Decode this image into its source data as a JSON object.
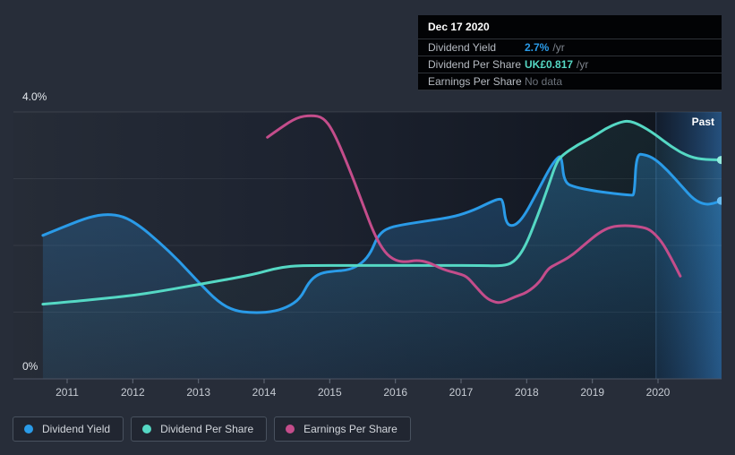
{
  "tooltip": {
    "title": "Dec 17 2020",
    "rows": [
      {
        "label": "Dividend Yield",
        "value": "2.7%",
        "unit": "/yr"
      },
      {
        "label": "Dividend Per Share",
        "value": "UK£0.817",
        "unit": "/yr"
      },
      {
        "label": "Earnings Per Share",
        "value": "No data",
        "unit": ""
      }
    ]
  },
  "chart_data": {
    "type": "line",
    "title": "",
    "x_ticks": [
      2011,
      2012,
      2013,
      2014,
      2015,
      2016,
      2017,
      2018,
      2019,
      2020
    ],
    "x_range": [
      2010.18,
      2020.97
    ],
    "y_axis": {
      "top_label": "4.0%",
      "bottom_label": "0%",
      "min": 0,
      "max": 4.0,
      "unit": "%"
    },
    "grid_values": [
      1,
      2,
      3,
      4
    ],
    "past_label": "Past",
    "past_start_year": 2019.97,
    "legend_position": "bottom-left",
    "series": [
      {
        "name": "Dividend Yield",
        "color": "#2a9be8",
        "dot_color": "#66bcf3",
        "fill_from": "rgba(45,140,215,0.36)",
        "fill_to": "rgba(45,140,215,0.10)",
        "end_dot": true,
        "points": [
          [
            2010.63,
            2.15
          ],
          [
            2011.0,
            2.3
          ],
          [
            2011.35,
            2.43
          ],
          [
            2011.6,
            2.47
          ],
          [
            2011.85,
            2.44
          ],
          [
            2012.1,
            2.3
          ],
          [
            2012.4,
            2.05
          ],
          [
            2012.7,
            1.77
          ],
          [
            2013.0,
            1.45
          ],
          [
            2013.3,
            1.15
          ],
          [
            2013.55,
            1.02
          ],
          [
            2013.8,
            0.99
          ],
          [
            2014.1,
            1.0
          ],
          [
            2014.35,
            1.07
          ],
          [
            2014.55,
            1.2
          ],
          [
            2014.68,
            1.45
          ],
          [
            2014.82,
            1.57
          ],
          [
            2015.0,
            1.61
          ],
          [
            2015.3,
            1.63
          ],
          [
            2015.5,
            1.74
          ],
          [
            2015.63,
            1.9
          ],
          [
            2015.72,
            2.12
          ],
          [
            2015.85,
            2.25
          ],
          [
            2016.1,
            2.31
          ],
          [
            2016.5,
            2.37
          ],
          [
            2016.9,
            2.43
          ],
          [
            2017.2,
            2.53
          ],
          [
            2017.45,
            2.65
          ],
          [
            2017.58,
            2.7
          ],
          [
            2017.64,
            2.68
          ],
          [
            2017.68,
            2.33
          ],
          [
            2017.8,
            2.28
          ],
          [
            2017.95,
            2.42
          ],
          [
            2018.15,
            2.78
          ],
          [
            2018.35,
            3.16
          ],
          [
            2018.47,
            3.32
          ],
          [
            2018.53,
            3.34
          ],
          [
            2018.57,
            2.94
          ],
          [
            2018.75,
            2.87
          ],
          [
            2019.0,
            2.82
          ],
          [
            2019.3,
            2.78
          ],
          [
            2019.6,
            2.75
          ],
          [
            2019.64,
            2.76
          ],
          [
            2019.67,
            3.37
          ],
          [
            2019.8,
            3.36
          ],
          [
            2019.95,
            3.3
          ],
          [
            2020.15,
            3.12
          ],
          [
            2020.35,
            2.9
          ],
          [
            2020.55,
            2.68
          ],
          [
            2020.72,
            2.61
          ],
          [
            2020.85,
            2.63
          ],
          [
            2020.96,
            2.67
          ]
        ]
      },
      {
        "name": "Dividend Per Share",
        "color": "#55d8c4",
        "dot_color": "#93ebdd",
        "fill_from": "rgba(85,216,196,0.08)",
        "fill_to": "rgba(85,216,196,0.01)",
        "end_dot": true,
        "points": [
          [
            2010.63,
            1.12
          ],
          [
            2011.1,
            1.16
          ],
          [
            2011.6,
            1.21
          ],
          [
            2012.0,
            1.25
          ],
          [
            2012.4,
            1.31
          ],
          [
            2012.8,
            1.38
          ],
          [
            2013.2,
            1.45
          ],
          [
            2013.6,
            1.52
          ],
          [
            2013.9,
            1.58
          ],
          [
            2014.15,
            1.65
          ],
          [
            2014.4,
            1.69
          ],
          [
            2014.7,
            1.7
          ],
          [
            2015.3,
            1.7
          ],
          [
            2016.0,
            1.7
          ],
          [
            2016.7,
            1.7
          ],
          [
            2017.3,
            1.7
          ],
          [
            2017.62,
            1.69
          ],
          [
            2017.8,
            1.74
          ],
          [
            2017.97,
            1.96
          ],
          [
            2018.15,
            2.4
          ],
          [
            2018.32,
            2.86
          ],
          [
            2018.45,
            3.24
          ],
          [
            2018.55,
            3.36
          ],
          [
            2018.78,
            3.51
          ],
          [
            2019.0,
            3.62
          ],
          [
            2019.2,
            3.75
          ],
          [
            2019.4,
            3.84
          ],
          [
            2019.55,
            3.87
          ],
          [
            2019.72,
            3.81
          ],
          [
            2019.95,
            3.67
          ],
          [
            2020.2,
            3.48
          ],
          [
            2020.45,
            3.34
          ],
          [
            2020.65,
            3.29
          ],
          [
            2020.96,
            3.28
          ]
        ]
      },
      {
        "name": "Earnings Per Share",
        "color": "#c44d8b",
        "end_dot": false,
        "points": [
          [
            2014.05,
            3.62
          ],
          [
            2014.25,
            3.76
          ],
          [
            2014.5,
            3.92
          ],
          [
            2014.72,
            3.95
          ],
          [
            2014.9,
            3.92
          ],
          [
            2015.05,
            3.72
          ],
          [
            2015.27,
            3.22
          ],
          [
            2015.5,
            2.63
          ],
          [
            2015.68,
            2.16
          ],
          [
            2015.84,
            1.89
          ],
          [
            2016.0,
            1.77
          ],
          [
            2016.17,
            1.75
          ],
          [
            2016.32,
            1.78
          ],
          [
            2016.5,
            1.75
          ],
          [
            2016.72,
            1.64
          ],
          [
            2016.95,
            1.58
          ],
          [
            2017.08,
            1.54
          ],
          [
            2017.2,
            1.41
          ],
          [
            2017.37,
            1.22
          ],
          [
            2017.5,
            1.15
          ],
          [
            2017.62,
            1.14
          ],
          [
            2017.82,
            1.23
          ],
          [
            2018.0,
            1.29
          ],
          [
            2018.2,
            1.45
          ],
          [
            2018.32,
            1.65
          ],
          [
            2018.45,
            1.72
          ],
          [
            2018.68,
            1.84
          ],
          [
            2018.9,
            2.03
          ],
          [
            2019.1,
            2.19
          ],
          [
            2019.28,
            2.28
          ],
          [
            2019.5,
            2.3
          ],
          [
            2019.72,
            2.28
          ],
          [
            2019.88,
            2.24
          ],
          [
            2020.05,
            2.07
          ],
          [
            2020.2,
            1.81
          ],
          [
            2020.34,
            1.54
          ]
        ]
      }
    ]
  }
}
